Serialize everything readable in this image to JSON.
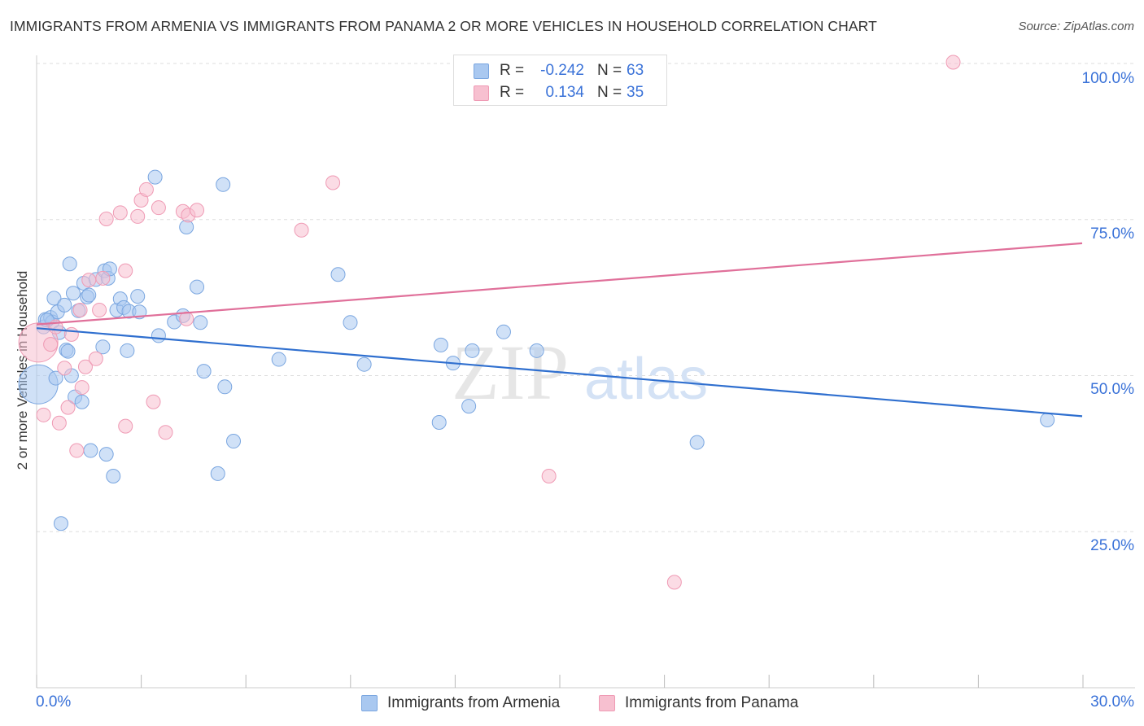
{
  "header": {
    "title": "IMMIGRANTS FROM ARMENIA VS IMMIGRANTS FROM PANAMA 2 OR MORE VEHICLES IN HOUSEHOLD CORRELATION CHART",
    "source": "Source: ZipAtlas.com"
  },
  "watermark": {
    "part1": "ZIP",
    "part2": "atlas"
  },
  "stats": {
    "r_label": "R =",
    "n_label": "N =",
    "armenia": {
      "r": "-0.242",
      "n": "63"
    },
    "panama": {
      "r": "0.134",
      "n": "35"
    }
  },
  "colors": {
    "armenia_fill": "#a9c8f0",
    "armenia_stroke": "#7aa6e0",
    "armenia_line": "#2f6fcf",
    "panama_fill": "#f7c0d0",
    "panama_stroke": "#ef9ab4",
    "panama_line": "#e0709a",
    "tick_text": "#3a72d8",
    "grid": "#dddddd"
  },
  "chart_data": {
    "type": "scatter",
    "title": "IMMIGRANTS FROM ARMENIA VS IMMIGRANTS FROM PANAMA 2 OR MORE VEHICLES IN HOUSEHOLD CORRELATION CHART",
    "xlabel": "",
    "ylabel": "2 or more Vehicles in Household",
    "xlim": [
      0,
      30
    ],
    "ylim": [
      0,
      100
    ],
    "x_tick_labels": [
      "0.0%",
      "30.0%"
    ],
    "y_ticks": [
      25,
      50,
      75,
      100
    ],
    "y_tick_labels": [
      "25.0%",
      "50.0%",
      "75.0%",
      "100.0%"
    ],
    "grid": true,
    "legend_position": "bottom-center",
    "series": [
      {
        "name": "Immigrants from Armenia",
        "color": "#a9c8f0",
        "trend": {
          "x": [
            0,
            30
          ],
          "y": [
            57.6,
            43.5
          ]
        },
        "points": [
          {
            "x": 0.05,
            "y": 48.6,
            "s": 2
          },
          {
            "x": 0.2,
            "y": 57.8
          },
          {
            "x": 0.25,
            "y": 59.0
          },
          {
            "x": 0.4,
            "y": 59.3
          },
          {
            "x": 0.45,
            "y": 58.6
          },
          {
            "x": 0.5,
            "y": 62.4
          },
          {
            "x": 0.55,
            "y": 49.6
          },
          {
            "x": 0.6,
            "y": 60.2
          },
          {
            "x": 0.65,
            "y": 56.9
          },
          {
            "x": 0.7,
            "y": 26.3
          },
          {
            "x": 0.8,
            "y": 61.3
          },
          {
            "x": 0.85,
            "y": 54.1
          },
          {
            "x": 0.9,
            "y": 53.9
          },
          {
            "x": 0.95,
            "y": 67.9
          },
          {
            "x": 1.0,
            "y": 50.0
          },
          {
            "x": 1.05,
            "y": 63.2
          },
          {
            "x": 1.1,
            "y": 46.6
          },
          {
            "x": 1.2,
            "y": 60.4
          },
          {
            "x": 1.3,
            "y": 45.8
          },
          {
            "x": 1.35,
            "y": 64.8
          },
          {
            "x": 1.45,
            "y": 62.6
          },
          {
            "x": 1.5,
            "y": 62.9
          },
          {
            "x": 1.55,
            "y": 38.0
          },
          {
            "x": 1.7,
            "y": 65.4
          },
          {
            "x": 1.9,
            "y": 54.6
          },
          {
            "x": 1.95,
            "y": 66.8
          },
          {
            "x": 2.0,
            "y": 37.4
          },
          {
            "x": 2.05,
            "y": 65.6
          },
          {
            "x": 2.1,
            "y": 67.1
          },
          {
            "x": 2.2,
            "y": 33.9
          },
          {
            "x": 2.3,
            "y": 60.5
          },
          {
            "x": 2.4,
            "y": 62.3
          },
          {
            "x": 2.5,
            "y": 60.9
          },
          {
            "x": 2.6,
            "y": 54.0
          },
          {
            "x": 2.65,
            "y": 60.3
          },
          {
            "x": 2.9,
            "y": 62.7
          },
          {
            "x": 2.95,
            "y": 60.2
          },
          {
            "x": 3.4,
            "y": 81.8
          },
          {
            "x": 3.5,
            "y": 56.4
          },
          {
            "x": 3.95,
            "y": 58.6
          },
          {
            "x": 4.2,
            "y": 59.6
          },
          {
            "x": 4.3,
            "y": 73.8
          },
          {
            "x": 4.6,
            "y": 64.2
          },
          {
            "x": 4.7,
            "y": 58.5
          },
          {
            "x": 4.8,
            "y": 50.7
          },
          {
            "x": 5.2,
            "y": 34.3
          },
          {
            "x": 5.35,
            "y": 80.6
          },
          {
            "x": 5.4,
            "y": 48.2
          },
          {
            "x": 5.65,
            "y": 39.5
          },
          {
            "x": 6.95,
            "y": 52.6
          },
          {
            "x": 8.65,
            "y": 66.2
          },
          {
            "x": 9.0,
            "y": 58.5
          },
          {
            "x": 9.4,
            "y": 51.8
          },
          {
            "x": 11.6,
            "y": 54.9
          },
          {
            "x": 11.55,
            "y": 42.5
          },
          {
            "x": 11.95,
            "y": 52.0
          },
          {
            "x": 12.4,
            "y": 45.1
          },
          {
            "x": 12.5,
            "y": 54.0
          },
          {
            "x": 13.4,
            "y": 57.0
          },
          {
            "x": 14.35,
            "y": 54.0
          },
          {
            "x": 18.95,
            "y": 39.3
          },
          {
            "x": 29.0,
            "y": 42.9
          },
          {
            "x": 0.3,
            "y": 58.9
          }
        ]
      },
      {
        "name": "Immigrants from Panama",
        "color": "#f7c0d0",
        "trend": {
          "x": [
            0,
            30
          ],
          "y": [
            58.2,
            71.2
          ]
        },
        "points": [
          {
            "x": 0.05,
            "y": 55.3,
            "s": 2
          },
          {
            "x": 0.2,
            "y": 43.7
          },
          {
            "x": 0.4,
            "y": 55.0
          },
          {
            "x": 0.55,
            "y": 57.8
          },
          {
            "x": 0.65,
            "y": 42.4
          },
          {
            "x": 0.8,
            "y": 51.2
          },
          {
            "x": 0.9,
            "y": 44.9
          },
          {
            "x": 1.0,
            "y": 56.6
          },
          {
            "x": 1.15,
            "y": 38.0
          },
          {
            "x": 1.3,
            "y": 48.1
          },
          {
            "x": 1.4,
            "y": 51.4
          },
          {
            "x": 1.5,
            "y": 65.3
          },
          {
            "x": 1.7,
            "y": 52.7
          },
          {
            "x": 1.8,
            "y": 60.5
          },
          {
            "x": 1.9,
            "y": 65.6
          },
          {
            "x": 2.0,
            "y": 75.1
          },
          {
            "x": 2.4,
            "y": 76.1
          },
          {
            "x": 2.55,
            "y": 66.8
          },
          {
            "x": 2.55,
            "y": 41.9
          },
          {
            "x": 2.9,
            "y": 75.5
          },
          {
            "x": 3.0,
            "y": 78.1
          },
          {
            "x": 3.15,
            "y": 79.8
          },
          {
            "x": 3.35,
            "y": 45.8
          },
          {
            "x": 3.5,
            "y": 76.9
          },
          {
            "x": 3.7,
            "y": 40.9
          },
          {
            "x": 4.2,
            "y": 76.3
          },
          {
            "x": 4.3,
            "y": 59.1
          },
          {
            "x": 4.35,
            "y": 75.7
          },
          {
            "x": 4.6,
            "y": 76.5
          },
          {
            "x": 7.6,
            "y": 73.3
          },
          {
            "x": 8.5,
            "y": 80.9
          },
          {
            "x": 14.7,
            "y": 33.9
          },
          {
            "x": 18.3,
            "y": 16.9
          },
          {
            "x": 26.3,
            "y": 100.2
          },
          {
            "x": 1.25,
            "y": 60.5
          }
        ]
      }
    ]
  },
  "legend": {
    "armenia_label": "Immigrants from Armenia",
    "panama_label": "Immigrants from Panama"
  }
}
